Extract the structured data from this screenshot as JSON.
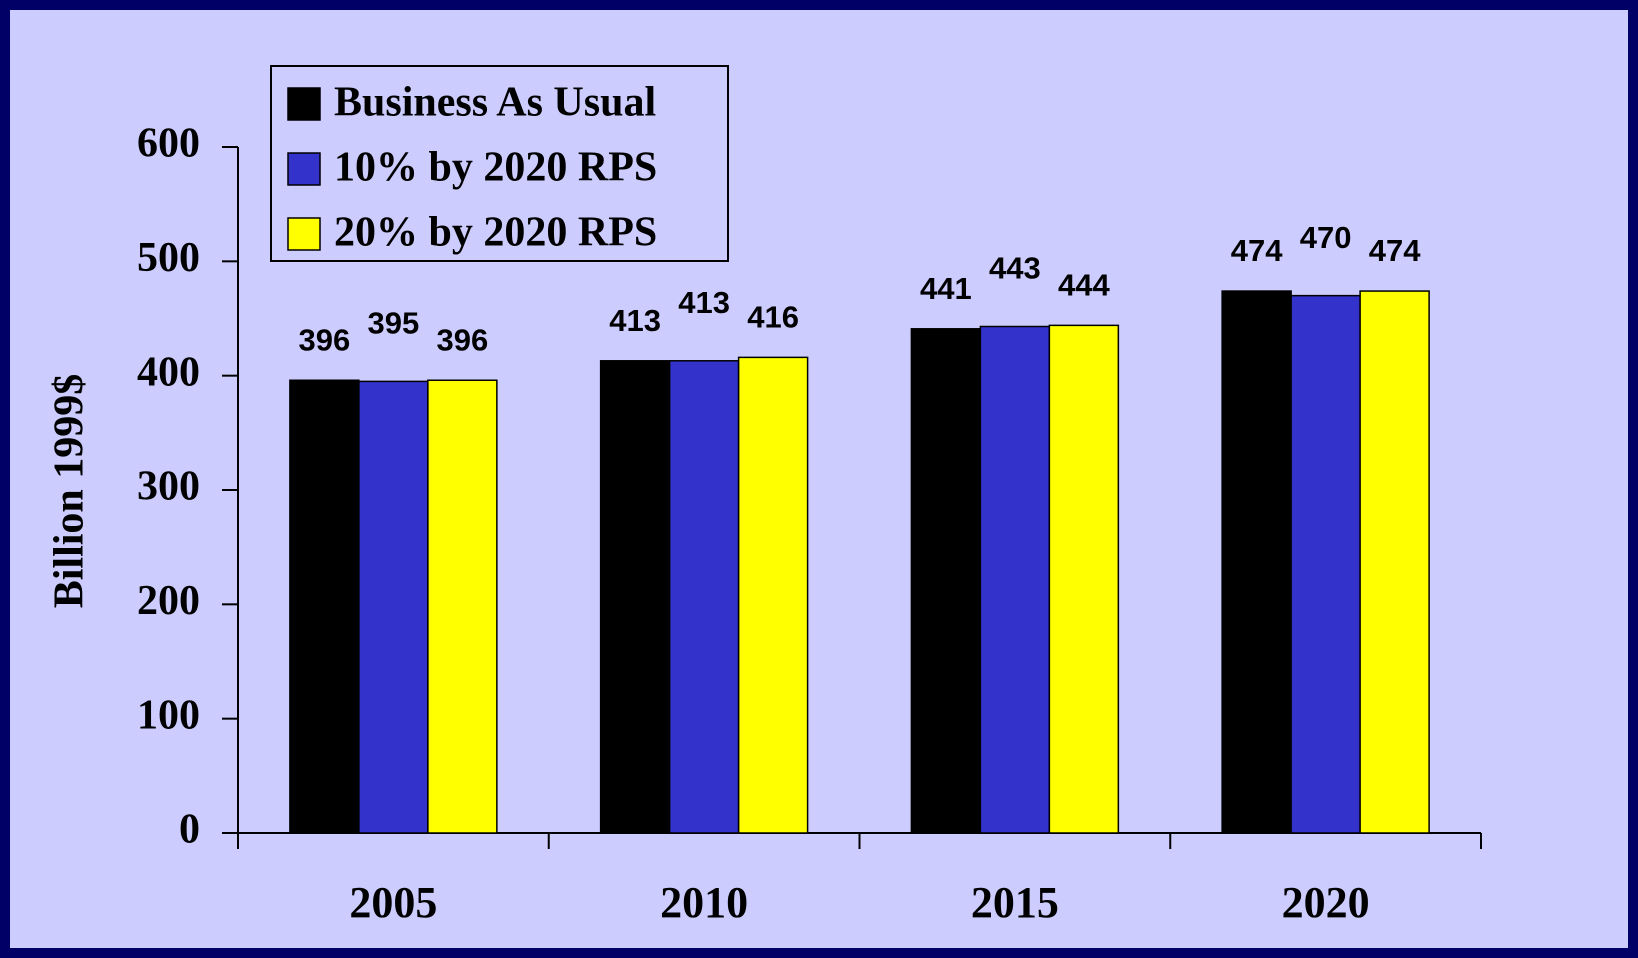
{
  "chart_data": {
    "type": "bar",
    "y_label": "Billion 1999$",
    "categories": [
      "2005",
      "2010",
      "2015",
      "2020"
    ],
    "series": [
      {
        "name": "Business As Usual",
        "color": "#000000",
        "values": [
          396,
          413,
          441,
          474
        ]
      },
      {
        "name": "10% by 2020 RPS",
        "color": "#3333cc",
        "values": [
          395,
          413,
          443,
          470
        ]
      },
      {
        "name": "20% by 2020 RPS",
        "color": "#ffff00",
        "values": [
          396,
          416,
          444,
          474
        ]
      }
    ],
    "ylim": [
      0,
      600
    ],
    "yticks": [
      0,
      100,
      200,
      300,
      400,
      500,
      600
    ],
    "legend": "upper left"
  }
}
